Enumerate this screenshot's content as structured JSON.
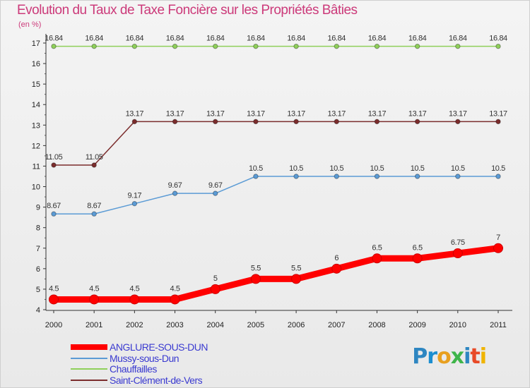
{
  "chart_data": {
    "type": "line",
    "title": "Evolution du Taux de Taxe Foncière sur les Propriétés Bâties",
    "ylabel": "(en %)",
    "xlabel": "",
    "ylim": [
      4,
      17
    ],
    "yticks": [
      4,
      5,
      6,
      7,
      8,
      9,
      10,
      11,
      12,
      13,
      14,
      15,
      16,
      17
    ],
    "x": [
      "2000",
      "2001",
      "2002",
      "2003",
      "2004",
      "2005",
      "2006",
      "2007",
      "2008",
      "2009",
      "2010",
      "2011"
    ],
    "series": [
      {
        "name": "ANGLURE-SOUS-DUN",
        "color": "#ff0000",
        "values": [
          4.5,
          4.5,
          4.5,
          4.5,
          5,
          5.5,
          5.5,
          6,
          6.5,
          6.5,
          6.75,
          7
        ],
        "labels": [
          "4.5",
          "4.5",
          "4.5",
          "4.5",
          "5",
          "5.5",
          "5.5",
          "6",
          "6.5",
          "6.5",
          "6.75",
          "7"
        ]
      },
      {
        "name": "Mussy-sous-Dun",
        "color": "#5b9bd5",
        "values": [
          8.67,
          8.67,
          9.17,
          9.67,
          9.67,
          10.5,
          10.5,
          10.5,
          10.5,
          10.5,
          10.5,
          10.5
        ],
        "labels": [
          "8.67",
          "8.67",
          "9.17",
          "9.67",
          "9.67",
          "10.5",
          "10.5",
          "10.5",
          "10.5",
          "10.5",
          "10.5",
          "10.5"
        ]
      },
      {
        "name": "Chauffailles",
        "color": "#8fd05a",
        "values": [
          16.84,
          16.84,
          16.84,
          16.84,
          16.84,
          16.84,
          16.84,
          16.84,
          16.84,
          16.84,
          16.84,
          16.84
        ],
        "labels": [
          "16.84",
          "16.84",
          "16.84",
          "16.84",
          "16.84",
          "16.84",
          "16.84",
          "16.84",
          "16.84",
          "16.84",
          "16.84",
          "16.84"
        ]
      },
      {
        "name": "Saint-Clément-de-Vers",
        "color": "#7b2c2c",
        "values": [
          11.05,
          11.05,
          13.17,
          13.17,
          13.17,
          13.17,
          13.17,
          13.17,
          13.17,
          13.17,
          13.17,
          13.17
        ],
        "labels": [
          "11.05",
          "11.05",
          "13.17",
          "13.17",
          "13.17",
          "13.17",
          "13.17",
          "13.17",
          "13.17",
          "13.17",
          "13.17",
          "13.17"
        ]
      }
    ],
    "legend_position": "bottom-left"
  },
  "logo": {
    "text": "Proxiti"
  }
}
